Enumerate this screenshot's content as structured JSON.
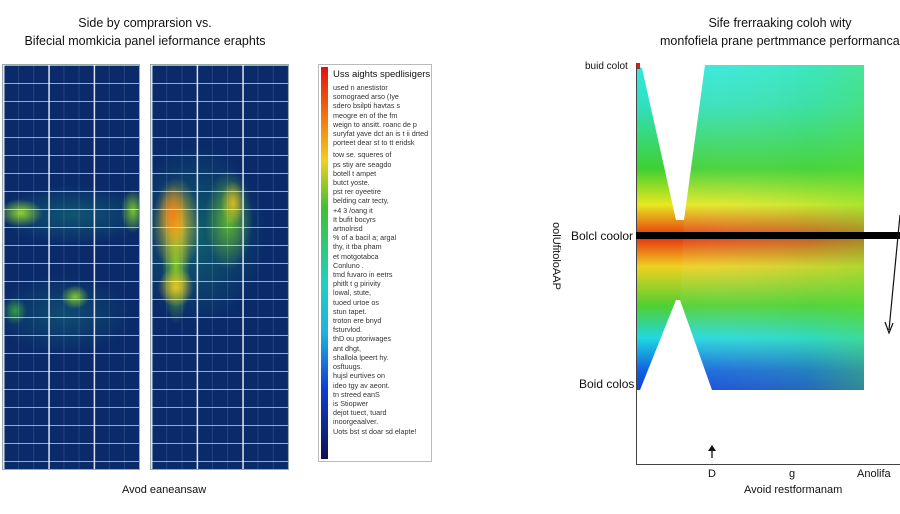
{
  "left": {
    "title_line1": "Side by comprarsion vs.",
    "title_line2": "Bifecial momkicia panel ieformance eraphts",
    "caption": "Avod eaneansaw",
    "legend": {
      "header": "Uss aights spedlisigers",
      "lines": [
        "used n anestistor",
        "somograed arso (Iye",
        "sdero bsilpti havtas s",
        "meogre en of the fm",
        "weign to ansitt. roanc de p",
        "suryfat yave dct an is t ii drted",
        "porteet dear st to tt eridsk",
        "tow se. squeres of",
        "ps stiy are seagdo",
        "botell t ampet",
        "butct yoste.",
        "pst rer oyeetire",
        "belding catr tecty,",
        "+4 3 /oang it",
        "It bufit bocyrs",
        "artnolrisd",
        "% of a bacil a; argal",
        "thy, it tba pham",
        "et motgotabca",
        "Conluno .",
        "tmd fuvaro in eetrs",
        "phitlt t g pirivity",
        "lowal, stute,",
        "tuoed urtoe os",
        "stun tapet.",
        "troton ere bnyd",
        "fsturvlod.",
        "thD ou ptoriwages",
        "ant dhgt,",
        "shallola lpeert hy.",
        "osftuugs.",
        "hujsl eurtives on",
        "ideo tgy av aeont.",
        "tn streed eanS",
        "is Stiopwer",
        "dejot tuect, tuard",
        "inoorgeaalver.",
        "Uots bst st doar sd elapte!"
      ],
      "colormap": [
        "#e01010",
        "#f07010",
        "#f0d020",
        "#40c030",
        "#20d0c0",
        "#20b0e0",
        "#1040d0",
        "#101050"
      ]
    }
  },
  "chart_data": {
    "type": "heatmap",
    "title_line1": "Sife frerraaking coloh wity",
    "title_line2": "monfofiela prane pertmmance performancacie",
    "ylabel": "oolUfitoloAAP",
    "y_ticks": [
      "buid colot",
      "Bolcl coolor",
      "Boid colos"
    ],
    "x_ticks": [
      "D",
      "g",
      "Anolifa"
    ],
    "xlabel": "Avoid restformanam",
    "colors": {
      "top": "#30e8e0",
      "mid": "#e83010",
      "bottom": "#1040d8"
    }
  }
}
